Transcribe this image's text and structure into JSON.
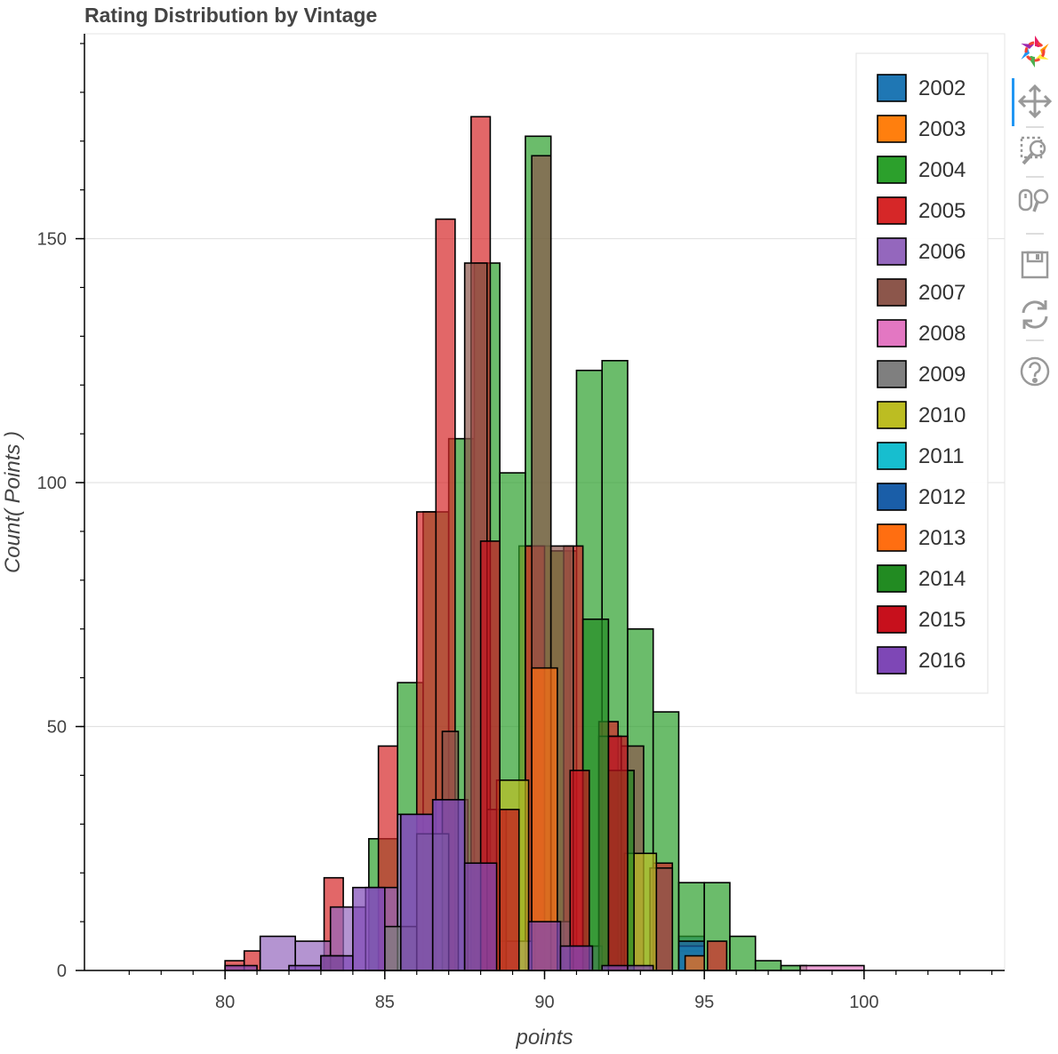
{
  "chart_data": {
    "type": "histogram",
    "title": "Rating Distribution by Vintage",
    "xlabel": "points",
    "ylabel": "Count( Points )",
    "xlim": [
      75.6,
      104.4
    ],
    "ylim": [
      0,
      192
    ],
    "x_ticks": [
      80,
      85,
      90,
      95,
      100
    ],
    "y_ticks": [
      0,
      50,
      100,
      150
    ],
    "grid": "horizontal",
    "legend_position": "top-right",
    "series": [
      {
        "name": "2002",
        "color": "#1f77b4",
        "bins": [
          [
            94.2,
            95.0,
            7
          ]
        ]
      },
      {
        "name": "2003",
        "color": "#ff7f0e",
        "bins": [
          [
            89.2,
            90.2,
            87
          ],
          [
            90.2,
            90.8,
            86
          ],
          [
            94.2,
            95.0,
            4
          ]
        ]
      },
      {
        "name": "2004",
        "color": "#2ca02c",
        "bins": [
          [
            84.5,
            85.4,
            27
          ],
          [
            85.4,
            86.2,
            59
          ],
          [
            86.2,
            87.0,
            94
          ],
          [
            87.0,
            87.8,
            109
          ],
          [
            87.8,
            88.6,
            145
          ],
          [
            88.6,
            89.4,
            102
          ],
          [
            89.4,
            90.2,
            171
          ],
          [
            90.2,
            91.0,
            86
          ],
          [
            91.0,
            91.8,
            123
          ],
          [
            91.8,
            92.6,
            125
          ],
          [
            92.6,
            93.4,
            70
          ],
          [
            93.4,
            94.2,
            53
          ],
          [
            94.2,
            95.0,
            18
          ],
          [
            95.0,
            95.8,
            18
          ],
          [
            95.8,
            96.6,
            7
          ],
          [
            96.6,
            97.4,
            2
          ],
          [
            97.4,
            98.2,
            1
          ]
        ]
      },
      {
        "name": "2005",
        "color": "#d62728",
        "bins": [
          [
            80.0,
            80.6,
            2
          ],
          [
            80.6,
            81.1,
            4
          ],
          [
            83.1,
            83.7,
            19
          ],
          [
            84.8,
            85.4,
            46
          ],
          [
            86.0,
            86.6,
            94
          ],
          [
            86.6,
            87.2,
            154
          ],
          [
            87.7,
            88.3,
            175
          ],
          [
            89.4,
            90.0,
            87
          ],
          [
            90.6,
            91.2,
            87
          ],
          [
            91.7,
            92.3,
            51
          ],
          [
            93.4,
            94.0,
            22
          ],
          [
            95.1,
            95.7,
            6
          ]
        ]
      },
      {
        "name": "2006",
        "color": "#9467bd",
        "bins": [
          [
            81.1,
            82.2,
            7
          ],
          [
            82.2,
            83.3,
            6
          ],
          [
            83.3,
            84.4,
            13
          ],
          [
            84.4,
            85.4,
            17
          ],
          [
            85.4,
            86.5,
            32
          ],
          [
            86.5,
            87.6,
            35
          ],
          [
            87.6,
            88.6,
            22
          ],
          [
            88.6,
            89.7,
            6
          ],
          [
            89.7,
            90.8,
            10
          ],
          [
            90.8,
            91.8,
            5
          ]
        ]
      },
      {
        "name": "2007",
        "color": "#8c564b",
        "bins": [
          [
            83.0,
            83.7,
            3
          ],
          [
            86.8,
            87.3,
            49
          ],
          [
            87.5,
            88.2,
            145
          ],
          [
            88.2,
            88.8,
            33
          ],
          [
            89.6,
            90.2,
            167
          ],
          [
            90.2,
            90.9,
            87
          ],
          [
            91.7,
            92.4,
            48
          ],
          [
            92.4,
            93.1,
            46
          ],
          [
            93.3,
            94.0,
            21
          ]
        ]
      },
      {
        "name": "2008",
        "color": "#e377c2",
        "bins": [
          [
            98.0,
            100.0,
            1
          ]
        ]
      },
      {
        "name": "2009",
        "color": "#7f7f7f",
        "bins": [
          [
            85.0,
            86.0,
            9
          ],
          [
            86.0,
            87.0,
            28
          ]
        ]
      },
      {
        "name": "2010",
        "color": "#bcbd22",
        "bins": [
          [
            88.5,
            89.5,
            39
          ],
          [
            92.5,
            93.5,
            24
          ]
        ]
      },
      {
        "name": "2011",
        "color": "#17becf",
        "bins": [
          [
            94.2,
            95.0,
            5
          ]
        ]
      },
      {
        "name": "2012",
        "color": "#1a5ea8",
        "bins": [
          [
            94.2,
            95.0,
            6
          ]
        ]
      },
      {
        "name": "2013",
        "color": "#ff6e11",
        "bins": [
          [
            89.6,
            90.4,
            62
          ],
          [
            94.4,
            95.0,
            3
          ]
        ]
      },
      {
        "name": "2014",
        "color": "#228b22",
        "bins": [
          [
            91.2,
            92.0,
            72
          ],
          [
            92.0,
            92.8,
            41
          ]
        ]
      },
      {
        "name": "2015",
        "color": "#c7101c",
        "bins": [
          [
            88.0,
            88.6,
            88
          ],
          [
            88.6,
            89.2,
            33
          ],
          [
            90.8,
            91.4,
            41
          ],
          [
            92.0,
            92.6,
            48
          ]
        ]
      },
      {
        "name": "2016",
        "color": "#7e47b6",
        "bins": [
          [
            80.0,
            81.0,
            1
          ],
          [
            82.0,
            83.0,
            1
          ],
          [
            83.0,
            84.0,
            3
          ],
          [
            84.0,
            85.0,
            17
          ],
          [
            85.5,
            86.5,
            32
          ],
          [
            86.5,
            87.5,
            35
          ],
          [
            87.5,
            88.5,
            22
          ],
          [
            89.5,
            90.5,
            10
          ],
          [
            90.5,
            91.5,
            5
          ],
          [
            91.8,
            92.6,
            1
          ],
          [
            92.6,
            93.4,
            1
          ]
        ]
      }
    ]
  },
  "toolbar": {
    "tools": [
      "bokeh-logo-icon",
      "pan-icon",
      "box-zoom-icon",
      "wheel-zoom-icon",
      "save-icon",
      "reset-icon",
      "help-icon"
    ],
    "active_tool": "pan-icon"
  }
}
